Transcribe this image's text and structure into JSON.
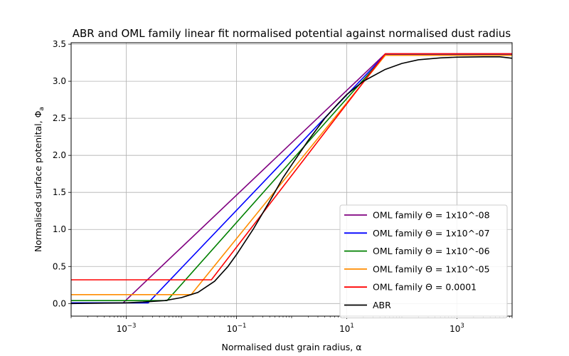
{
  "chart_data": {
    "type": "line",
    "title": "ABR and OML family linear fit normalised potential against normalised dust radius",
    "xlabel": "Normalised dust grain radius, α",
    "ylabel": "Normalised surface potenital, Φa",
    "xscale": "log",
    "xlim": [
      0.0001,
      10000
    ],
    "ylim": [
      -0.17,
      3.52
    ],
    "grid": true,
    "legend_position": "lower right",
    "x_ticks": [
      {
        "value": 0.001,
        "base": "10",
        "exp": "−3"
      },
      {
        "value": 0.1,
        "base": "10",
        "exp": "−1"
      },
      {
        "value": 10,
        "base": "10",
        "exp": "1"
      },
      {
        "value": 1000,
        "base": "10",
        "exp": "3"
      }
    ],
    "y_ticks": [
      {
        "value": 0.0,
        "label": "0.0"
      },
      {
        "value": 0.5,
        "label": "0.5"
      },
      {
        "value": 1.0,
        "label": "1.0"
      },
      {
        "value": 1.5,
        "label": "1.5"
      },
      {
        "value": 2.0,
        "label": "2.0"
      },
      {
        "value": 2.5,
        "label": "2.5"
      },
      {
        "value": 3.0,
        "label": "3.0"
      },
      {
        "value": 3.5,
        "label": "3.5"
      }
    ],
    "series": [
      {
        "name": "OML family Θ = 1x10^-08",
        "color": "#800080",
        "x": [
          0.0001,
          0.00088,
          50,
          10000
        ],
        "y": [
          0.01,
          0.01,
          3.37,
          3.37
        ]
      },
      {
        "name": "OML family Θ = 1x10^-07",
        "color": "#0000ff",
        "x": [
          0.0001,
          0.0025,
          50,
          10000
        ],
        "y": [
          0.01,
          0.01,
          3.36,
          3.36
        ]
      },
      {
        "name": "OML family Θ = 1x10^-06",
        "color": "#008000",
        "x": [
          0.0001,
          0.0055,
          50,
          10000
        ],
        "y": [
          0.04,
          0.04,
          3.35,
          3.35
        ]
      },
      {
        "name": "OML family Θ = 1x10^-05",
        "color": "#ff8c00",
        "x": [
          0.0001,
          0.015,
          50,
          10000
        ],
        "y": [
          0.12,
          0.12,
          3.35,
          3.35
        ]
      },
      {
        "name": "OML family Θ = 0.0001",
        "color": "#ff0000",
        "x": [
          0.0001,
          0.035,
          50,
          10000
        ],
        "y": [
          0.32,
          0.32,
          3.37,
          3.37
        ]
      },
      {
        "name": "ABR",
        "color": "#000000",
        "x": [
          0.0001,
          0.001,
          0.002,
          0.005,
          0.01,
          0.02,
          0.04,
          0.07,
          0.1,
          0.2,
          0.4,
          0.7,
          1,
          2,
          4,
          7,
          10,
          20,
          50,
          100,
          200,
          500,
          1000,
          3000,
          6000,
          10000
        ],
        "y": [
          0.0,
          0.01,
          0.02,
          0.04,
          0.08,
          0.15,
          0.3,
          0.5,
          0.66,
          1.0,
          1.38,
          1.7,
          1.87,
          2.2,
          2.5,
          2.7,
          2.82,
          3.0,
          3.16,
          3.24,
          3.29,
          3.315,
          3.325,
          3.33,
          3.33,
          3.31
        ]
      }
    ]
  }
}
